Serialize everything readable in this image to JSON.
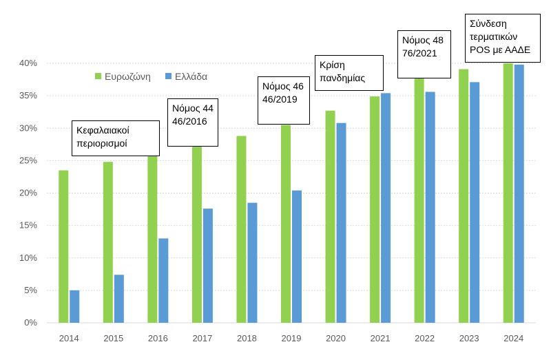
{
  "chart_data": {
    "type": "bar",
    "title": "",
    "xlabel": "",
    "ylabel": "",
    "ylim": [
      0,
      40
    ],
    "yticks": [
      "0%",
      "5%",
      "10%",
      "15%",
      "20%",
      "25%",
      "30%",
      "35%",
      "40%"
    ],
    "grid": true,
    "legend_position": "top-left",
    "categories": [
      "2014",
      "2015",
      "2016",
      "2017",
      "2018",
      "2019",
      "2020",
      "2021",
      "2022",
      "2023",
      "2024"
    ],
    "series": [
      {
        "name": "Ευρωζώνη",
        "color": "#92d050",
        "values": [
          23.5,
          24.8,
          26.0,
          27.2,
          28.8,
          30.5,
          32.7,
          34.9,
          37.7,
          39.1,
          40.0
        ]
      },
      {
        "name": "Ελλάδα",
        "color": "#5b9bd5",
        "values": [
          5.0,
          7.4,
          13.0,
          17.6,
          18.5,
          20.4,
          30.8,
          35.4,
          35.6,
          37.1,
          39.8
        ]
      }
    ],
    "annotations": [
      {
        "text": "Κεφαλαιακοί\nπεριορισμοί",
        "year": "2015"
      },
      {
        "text": "Νόμος 4446/2016",
        "year": "2017"
      },
      {
        "text": "Νόμος 4646/2019",
        "year": "2019"
      },
      {
        "text": "Κρίση\nπανδημίας",
        "year": "2020"
      },
      {
        "text": "Νόμος 4876/2021",
        "year": "2022"
      },
      {
        "text": "Σύνδεση\nτερματικών\nPOS με ΑΑΔΕ",
        "year": "2024"
      }
    ]
  }
}
